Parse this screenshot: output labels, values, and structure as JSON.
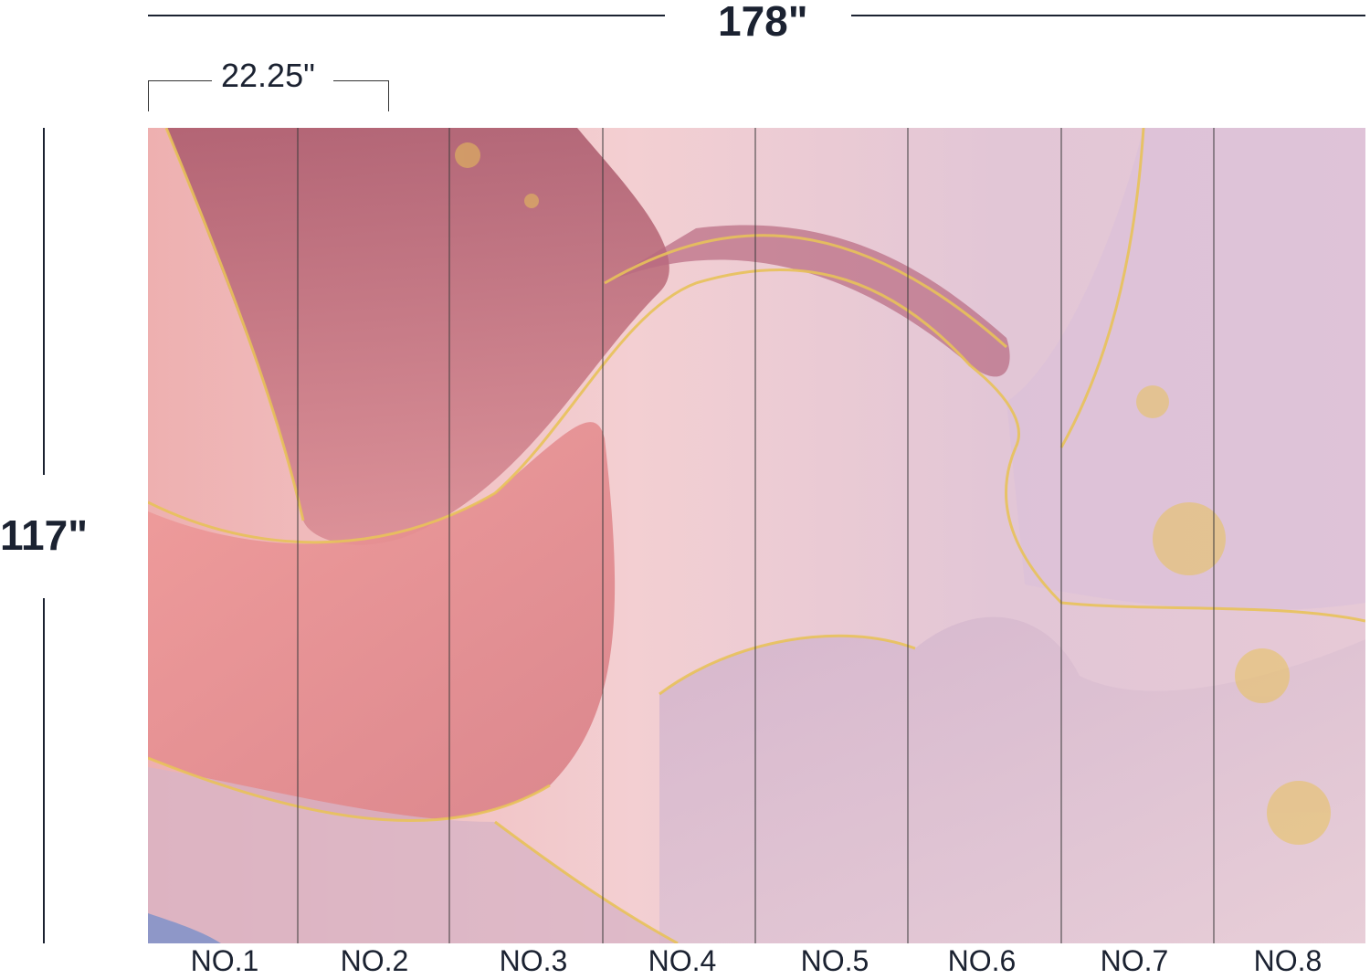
{
  "dimensions": {
    "total_width": "178\"",
    "panel_width": "22.25\"",
    "height": "117\""
  },
  "panels": [
    "NO.1",
    "NO.2",
    "NO.3",
    "NO.4",
    "NO.5",
    "NO.6",
    "NO.7",
    "NO.8"
  ],
  "colors": {
    "text": "#1b2231",
    "pink": "#e9a6a8",
    "rose": "#b8606e",
    "blush": "#f1cfd3",
    "lilac": "#d7bcd3",
    "gold": "#e8c25a"
  }
}
